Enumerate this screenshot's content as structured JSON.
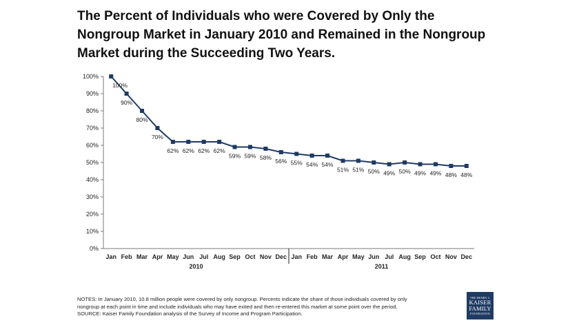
{
  "chart_data": {
    "type": "line",
    "title": "The Percent of Individuals who were Covered by Only the Nongroup Market in January 2010 and Remained in the Nongroup Market during the Succeeding Two Years.",
    "categories": [
      "Jan",
      "Feb",
      "Mar",
      "Apr",
      "May",
      "Jun",
      "Jul",
      "Aug",
      "Sep",
      "Oct",
      "Nov",
      "Dec",
      "Jan",
      "Feb",
      "Mar",
      "Apr",
      "May",
      "Jun",
      "Jul",
      "Aug",
      "Sep",
      "Oct",
      "Nov",
      "Dec"
    ],
    "category_groups": [
      {
        "label": "2010",
        "count": 12
      },
      {
        "label": "2011",
        "count": 12
      }
    ],
    "series": [
      {
        "values": [
          100,
          90,
          80,
          70,
          62,
          62,
          62,
          62,
          59,
          59,
          58,
          56,
          55,
          54,
          54,
          51,
          51,
          50,
          49,
          50,
          49,
          49,
          48,
          48
        ]
      }
    ],
    "data_labels": [
      "100%",
      "90%",
      "80%",
      "70%",
      "62%",
      "62%",
      "62%",
      "62%",
      "59%",
      "59%",
      "58%",
      "56%",
      "55%",
      "54%",
      "54%",
      "51%",
      "51%",
      "50%",
      "49%",
      "50%",
      "49%",
      "49%",
      "48%",
      "48%"
    ],
    "ylim": [
      0,
      100
    ],
    "yticks": [
      "0%",
      "10%",
      "20%",
      "30%",
      "40%",
      "50%",
      "60%",
      "70%",
      "80%",
      "90%",
      "100%"
    ],
    "line_color": "#1f3b63",
    "marker": "square",
    "grid": false,
    "legend": "none"
  },
  "notes": {
    "line1": "NOTES: In January 2010, 10.8 million people were covered by only nongroup.  Percents indicate the share of those individuals covered by only",
    "line2": "nongroup at each point in time and include individuals who may have exited and then re-entered this market at some point over the period.",
    "line3": "SOURCE:  Kaiser Family Foundation analysis of the Survey of Income and Program Participation."
  },
  "logo": {
    "line1": "THE HENRY J.",
    "line2": "KAISER",
    "line3": "FAMILY",
    "line4": "FOUNDATION",
    "color": "#1f3b63"
  }
}
